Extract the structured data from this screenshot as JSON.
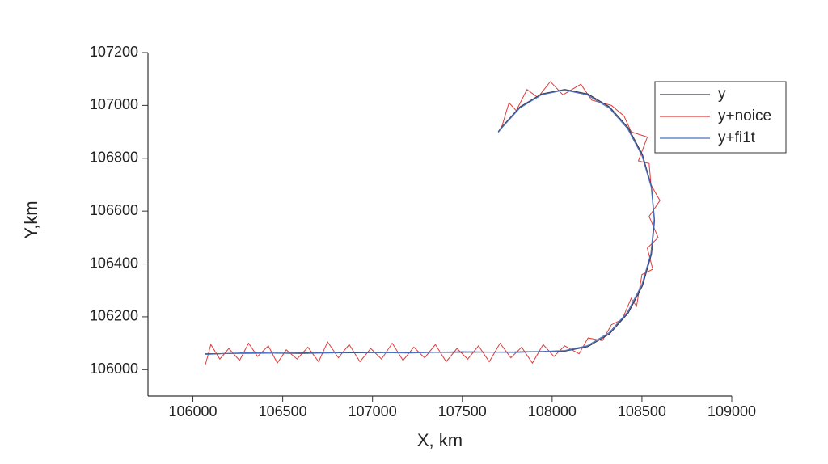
{
  "chart_data": {
    "type": "line",
    "x_label": "X, km",
    "y_label": "Y,km",
    "xlim": [
      105750,
      109000
    ],
    "ylim": [
      105900,
      107200
    ],
    "xticks": [
      106000,
      106500,
      107000,
      107500,
      108000,
      108500,
      109000
    ],
    "yticks": [
      106000,
      106200,
      106400,
      106600,
      106800,
      107000,
      107200
    ],
    "legend": "top-right",
    "series": [
      {
        "name": "y",
        "color": "#3a3a4a",
        "x": [
          106070,
          106300,
          106600,
          106900,
          107200,
          107500,
          107800,
          108070,
          108199,
          108320,
          108424,
          108503,
          108553,
          108570,
          108553,
          108503,
          108424,
          108320,
          108199,
          108070,
          107941,
          107820,
          107716,
          107700
        ],
        "values": [
          106060,
          106062,
          106063,
          106064,
          106065,
          106066,
          106067,
          106070,
          106087,
          106136,
          106215,
          106318,
          106437,
          106565,
          106693,
          106813,
          106915,
          106994,
          107043,
          107060,
          107043,
          106994,
          106915,
          106900
        ]
      },
      {
        "name": "y+noice",
        "color": "#e03a3a",
        "x": [
          106070,
          106100,
          106150,
          106200,
          106260,
          106310,
          106360,
          106420,
          106470,
          106520,
          106580,
          106640,
          106700,
          106750,
          106810,
          106870,
          106930,
          106990,
          107050,
          107110,
          107170,
          107230,
          107290,
          107350,
          107410,
          107470,
          107530,
          107590,
          107650,
          107710,
          107770,
          107830,
          107890,
          107950,
          108010,
          108070,
          108150,
          108200,
          108280,
          108330,
          108390,
          108440,
          108470,
          108500,
          108560,
          108530,
          108590,
          108540,
          108600,
          108550,
          108540,
          108480,
          108530,
          108440,
          108400,
          108330,
          108220,
          108160,
          108060,
          107990,
          107920,
          107860,
          107800,
          107760,
          107720,
          107700
        ],
        "values": [
          106020,
          106095,
          106040,
          106080,
          106035,
          106100,
          106050,
          106090,
          106025,
          106075,
          106040,
          106085,
          106030,
          106105,
          106045,
          106095,
          106030,
          106080,
          106040,
          106100,
          106035,
          106085,
          106045,
          106095,
          106030,
          106080,
          106040,
          106090,
          106030,
          106100,
          106045,
          106085,
          106025,
          106095,
          106050,
          106090,
          106060,
          106120,
          106110,
          106170,
          106190,
          106270,
          106240,
          106360,
          106380,
          106460,
          106500,
          106580,
          106640,
          106700,
          106780,
          106790,
          106880,
          106900,
          106960,
          107000,
          107020,
          107080,
          107040,
          107090,
          107030,
          107060,
          106980,
          107010,
          106920,
          106900
        ]
      },
      {
        "name": "y+fi1t",
        "color": "#4a72c4",
        "x": [
          106070,
          106300,
          106600,
          106900,
          107200,
          107500,
          107800,
          108070,
          108195,
          108318,
          108420,
          108500,
          108550,
          108568,
          108552,
          108500,
          108420,
          108318,
          108195,
          108068,
          107940,
          107820,
          107716,
          107700
        ],
        "values": [
          106058,
          106064,
          106061,
          106066,
          106063,
          106068,
          106065,
          106072,
          106090,
          106140,
          106218,
          106322,
          106440,
          106568,
          106690,
          106810,
          106912,
          106990,
          107040,
          107058,
          107040,
          106990,
          106912,
          106898
        ]
      }
    ]
  }
}
